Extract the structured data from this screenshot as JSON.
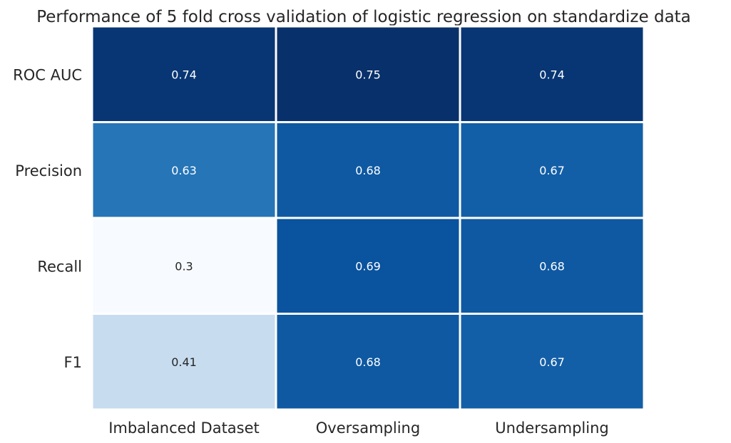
{
  "chart_data": {
    "type": "heatmap",
    "title": "Performance of 5 fold cross validation of logistic regression on standardize data",
    "rows": [
      "ROC AUC",
      "Precision",
      "Recall",
      "F1"
    ],
    "columns": [
      "Imbalanced Dataset",
      "Oversampling",
      "Undersampling"
    ],
    "values": [
      [
        0.74,
        0.75,
        0.74
      ],
      [
        0.63,
        0.68,
        0.67
      ],
      [
        0.3,
        0.69,
        0.68
      ],
      [
        0.41,
        0.68,
        0.67
      ]
    ],
    "value_labels": [
      [
        "0.74",
        "0.75",
        "0.74"
      ],
      [
        "0.63",
        "0.68",
        "0.67"
      ],
      [
        "0.3",
        "0.69",
        "0.68"
      ],
      [
        "0.41",
        "0.68",
        "0.67"
      ]
    ],
    "colormap": "Blues",
    "colorbar": false,
    "cell_border_color": "#ffffff",
    "color_low": "#f7fbff",
    "color_high": "#08306b"
  }
}
